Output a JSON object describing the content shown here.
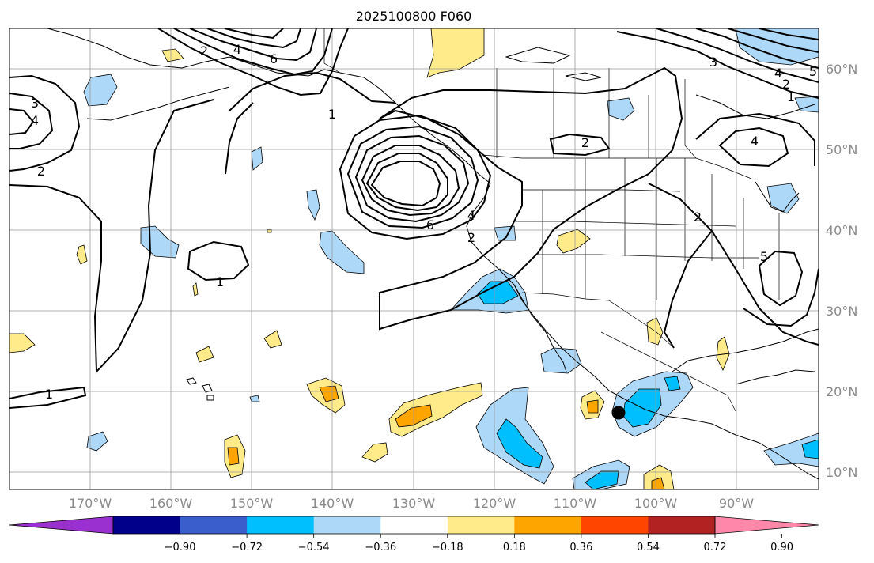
{
  "map": {
    "title": "2025100800 F060",
    "lat_labels": [
      "60°N",
      "50°N",
      "40°N",
      "30°N",
      "20°N",
      "10°N"
    ],
    "lon_labels": [
      "170°W",
      "160°W",
      "150°W",
      "140°W",
      "130°W",
      "120°W",
      "110°W",
      "100°W",
      "90°W"
    ],
    "contour_labels": [
      "1",
      "2",
      "3",
      "4",
      "5",
      "6"
    ],
    "colorbar": {
      "ticks": [
        "−0.90",
        "−0.72",
        "−0.54",
        "−0.36",
        "−0.18",
        "0.18",
        "0.36",
        "0.54",
        "0.72",
        "0.90"
      ],
      "colors": [
        "#9b30d0",
        "#00008b",
        "#3a5fcd",
        "#00bfff",
        "#add8f7",
        "#ffffff",
        "#ffeb8a",
        "#ffa500",
        "#ff4500",
        "#b22222",
        "#ff88aa"
      ]
    },
    "colors": {
      "neg_light": "#add8f7",
      "neg_mid": "#00bfff",
      "pos_light": "#ffeb8a",
      "pos_mid": "#ffa500",
      "grid": "#999999",
      "contour": "#000000"
    }
  }
}
